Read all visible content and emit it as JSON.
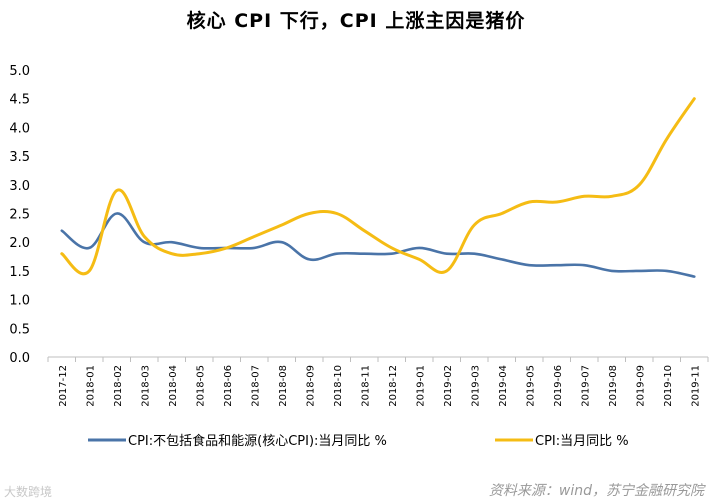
{
  "chart_data": {
    "type": "line",
    "title": "核心 CPI 下行，CPI 上涨主因是猪价",
    "categories": [
      "2017-12",
      "2018-01",
      "2018-02",
      "2018-03",
      "2018-04",
      "2018-05",
      "2018-06",
      "2018-07",
      "2018-08",
      "2018-09",
      "2018-10",
      "2018-11",
      "2018-12",
      "2019-01",
      "2019-02",
      "2019-03",
      "2019-04",
      "2019-05",
      "2019-06",
      "2019-07",
      "2019-08",
      "2019-09",
      "2019-10",
      "2019-11"
    ],
    "ylim": [
      0,
      5
    ],
    "yticks": [
      "0.0",
      "0.5",
      "1.0",
      "1.5",
      "2.0",
      "2.5",
      "3.0",
      "3.5",
      "4.0",
      "4.5",
      "5.0"
    ],
    "grid": false,
    "legend_position": "bottom",
    "series": [
      {
        "name": "CPI:不包括食品和能源(核心CPI):当月同比  %",
        "color": "#4a74a8",
        "values": [
          2.2,
          1.9,
          2.5,
          2.0,
          2.0,
          1.9,
          1.9,
          1.9,
          2.0,
          1.7,
          1.8,
          1.8,
          1.8,
          1.9,
          1.8,
          1.8,
          1.7,
          1.6,
          1.6,
          1.6,
          1.5,
          1.5,
          1.5,
          1.4
        ]
      },
      {
        "name": "CPI:当月同比  %",
        "color": "#f5bc14",
        "values": [
          1.8,
          1.5,
          2.9,
          2.1,
          1.8,
          1.8,
          1.9,
          2.1,
          2.3,
          2.5,
          2.5,
          2.2,
          1.9,
          1.7,
          1.5,
          2.3,
          2.5,
          2.7,
          2.7,
          2.8,
          2.8,
          3.0,
          3.8,
          4.5
        ]
      }
    ]
  },
  "source_text": "资料来源：wind，苏宁金融研究院",
  "watermark_text": "大数跨境"
}
